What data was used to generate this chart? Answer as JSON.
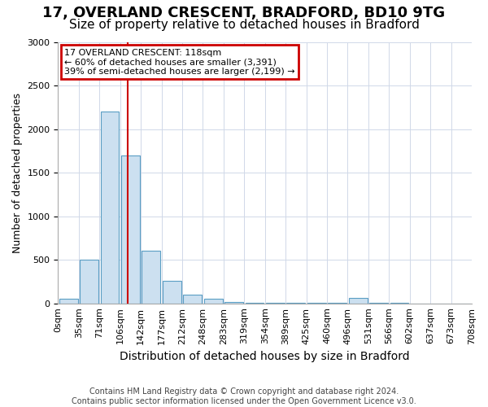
{
  "title": "17, OVERLAND CRESCENT, BRADFORD, BD10 9TG",
  "subtitle": "Size of property relative to detached houses in Bradford",
  "xlabel": "Distribution of detached houses by size in Bradford",
  "ylabel": "Number of detached properties",
  "bin_labels": [
    "0sqm",
    "35sqm",
    "71sqm",
    "106sqm",
    "142sqm",
    "177sqm",
    "212sqm",
    "248sqm",
    "283sqm",
    "319sqm",
    "354sqm",
    "389sqm",
    "425sqm",
    "460sqm",
    "496sqm",
    "531sqm",
    "566sqm",
    "602sqm",
    "637sqm",
    "673sqm",
    "708sqm"
  ],
  "values": [
    50,
    500,
    2200,
    1700,
    600,
    260,
    100,
    50,
    20,
    10,
    5,
    5,
    3,
    3,
    60,
    2,
    2,
    1,
    1,
    1
  ],
  "bar_color": "#cce0f0",
  "bar_edge_color": "#5a9ec4",
  "marker_line_color": "#cc0000",
  "annotation_text": "17 OVERLAND CRESCENT: 118sqm\n← 60% of detached houses are smaller (3,391)\n39% of semi-detached houses are larger (2,199) →",
  "annotation_box_color": "#cc0000",
  "ylim": [
    0,
    3000
  ],
  "footnote": "Contains HM Land Registry data © Crown copyright and database right 2024.\nContains public sector information licensed under the Open Government Licence v3.0.",
  "title_fontsize": 13,
  "subtitle_fontsize": 11,
  "xlabel_fontsize": 10,
  "ylabel_fontsize": 9,
  "tick_fontsize": 8,
  "annot_fontsize": 8
}
